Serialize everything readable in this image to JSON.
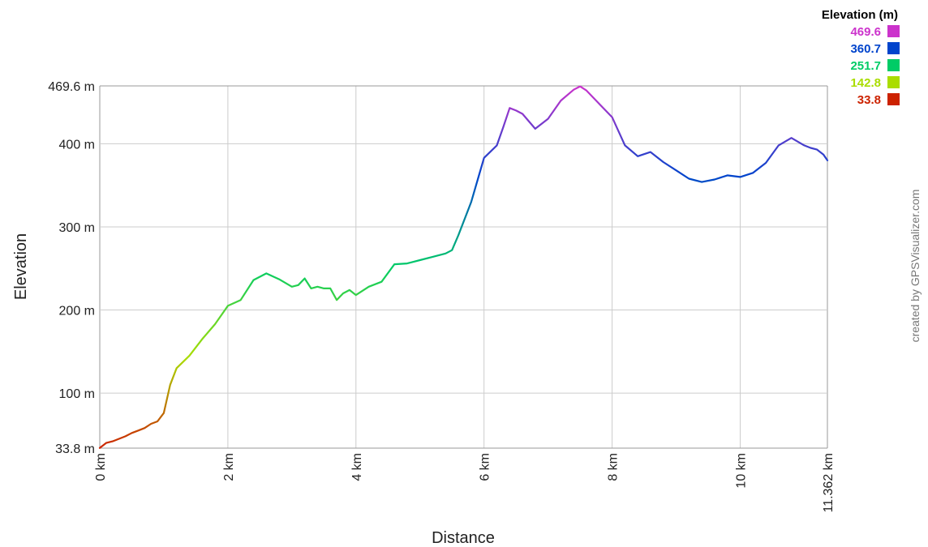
{
  "chart_data": {
    "type": "line",
    "xlabel": "Distance",
    "ylabel": "Elevation",
    "x_unit": "km",
    "y_unit": "m",
    "xlim": [
      0,
      11.362
    ],
    "ylim": [
      33.8,
      469.6
    ],
    "x_ticks": [
      {
        "value": 0,
        "label": "0 km"
      },
      {
        "value": 2,
        "label": "2 km"
      },
      {
        "value": 4,
        "label": "4 km"
      },
      {
        "value": 6,
        "label": "6 km"
      },
      {
        "value": 8,
        "label": "8 km"
      },
      {
        "value": 10,
        "label": "10 km"
      },
      {
        "value": 11.362,
        "label": "11.362 km"
      }
    ],
    "y_ticks": [
      {
        "value": 33.8,
        "label": "33.8 m"
      },
      {
        "value": 100,
        "label": "100 m"
      },
      {
        "value": 200,
        "label": "200 m"
      },
      {
        "value": 300,
        "label": "300 m"
      },
      {
        "value": 400,
        "label": "400 m"
      },
      {
        "value": 469.6,
        "label": "469.6 m"
      }
    ],
    "grid": true,
    "legend": {
      "title": "Elevation (m)",
      "placement": "top-right",
      "entries": [
        {
          "label": "469.6",
          "value": 469.6,
          "color": "#cc33cc"
        },
        {
          "label": "360.7",
          "value": 360.7,
          "color": "#0044cc"
        },
        {
          "label": "251.7",
          "value": 251.7,
          "color": "#00cc66"
        },
        {
          "label": "142.8",
          "value": 142.8,
          "color": "#aadd00"
        },
        {
          "label": "33.8",
          "value": 33.8,
          "color": "#cc2200"
        }
      ]
    },
    "series": [
      {
        "x": [
          0,
          0.1,
          0.2,
          0.3,
          0.4,
          0.5,
          0.6,
          0.7,
          0.8,
          0.9,
          1.0,
          1.1,
          1.2,
          1.4,
          1.6,
          1.8,
          2.0,
          2.2,
          2.4,
          2.6,
          2.8,
          3.0,
          3.1,
          3.2,
          3.3,
          3.4,
          3.5,
          3.6,
          3.7,
          3.8,
          3.9,
          4.0,
          4.2,
          4.4,
          4.6,
          4.8,
          5.0,
          5.2,
          5.4,
          5.5,
          5.6,
          5.8,
          6.0,
          6.2,
          6.3,
          6.4,
          6.5,
          6.6,
          6.8,
          7.0,
          7.2,
          7.4,
          7.5,
          7.6,
          7.8,
          8.0,
          8.2,
          8.4,
          8.6,
          8.8,
          9.0,
          9.2,
          9.4,
          9.6,
          9.8,
          10.0,
          10.2,
          10.4,
          10.6,
          10.8,
          11.0,
          11.1,
          11.2,
          11.3,
          11.362
        ],
        "y": [
          34,
          40,
          42,
          45,
          48,
          52,
          55,
          58,
          63,
          66,
          76,
          110,
          130,
          145,
          165,
          183,
          205,
          212,
          236,
          244,
          237,
          228,
          230,
          238,
          226,
          228,
          226,
          226,
          212,
          220,
          224,
          218,
          228,
          234,
          255,
          256,
          260,
          264,
          268,
          272,
          290,
          330,
          383,
          398,
          420,
          443,
          440,
          436,
          418,
          430,
          452,
          465,
          469,
          464,
          448,
          432,
          398,
          385,
          390,
          378,
          368,
          358,
          354,
          357,
          362,
          360,
          365,
          377,
          398,
          407,
          398,
          395,
          393,
          387,
          380
        ]
      }
    ],
    "credit": "created by GPSVisualizer.com"
  }
}
